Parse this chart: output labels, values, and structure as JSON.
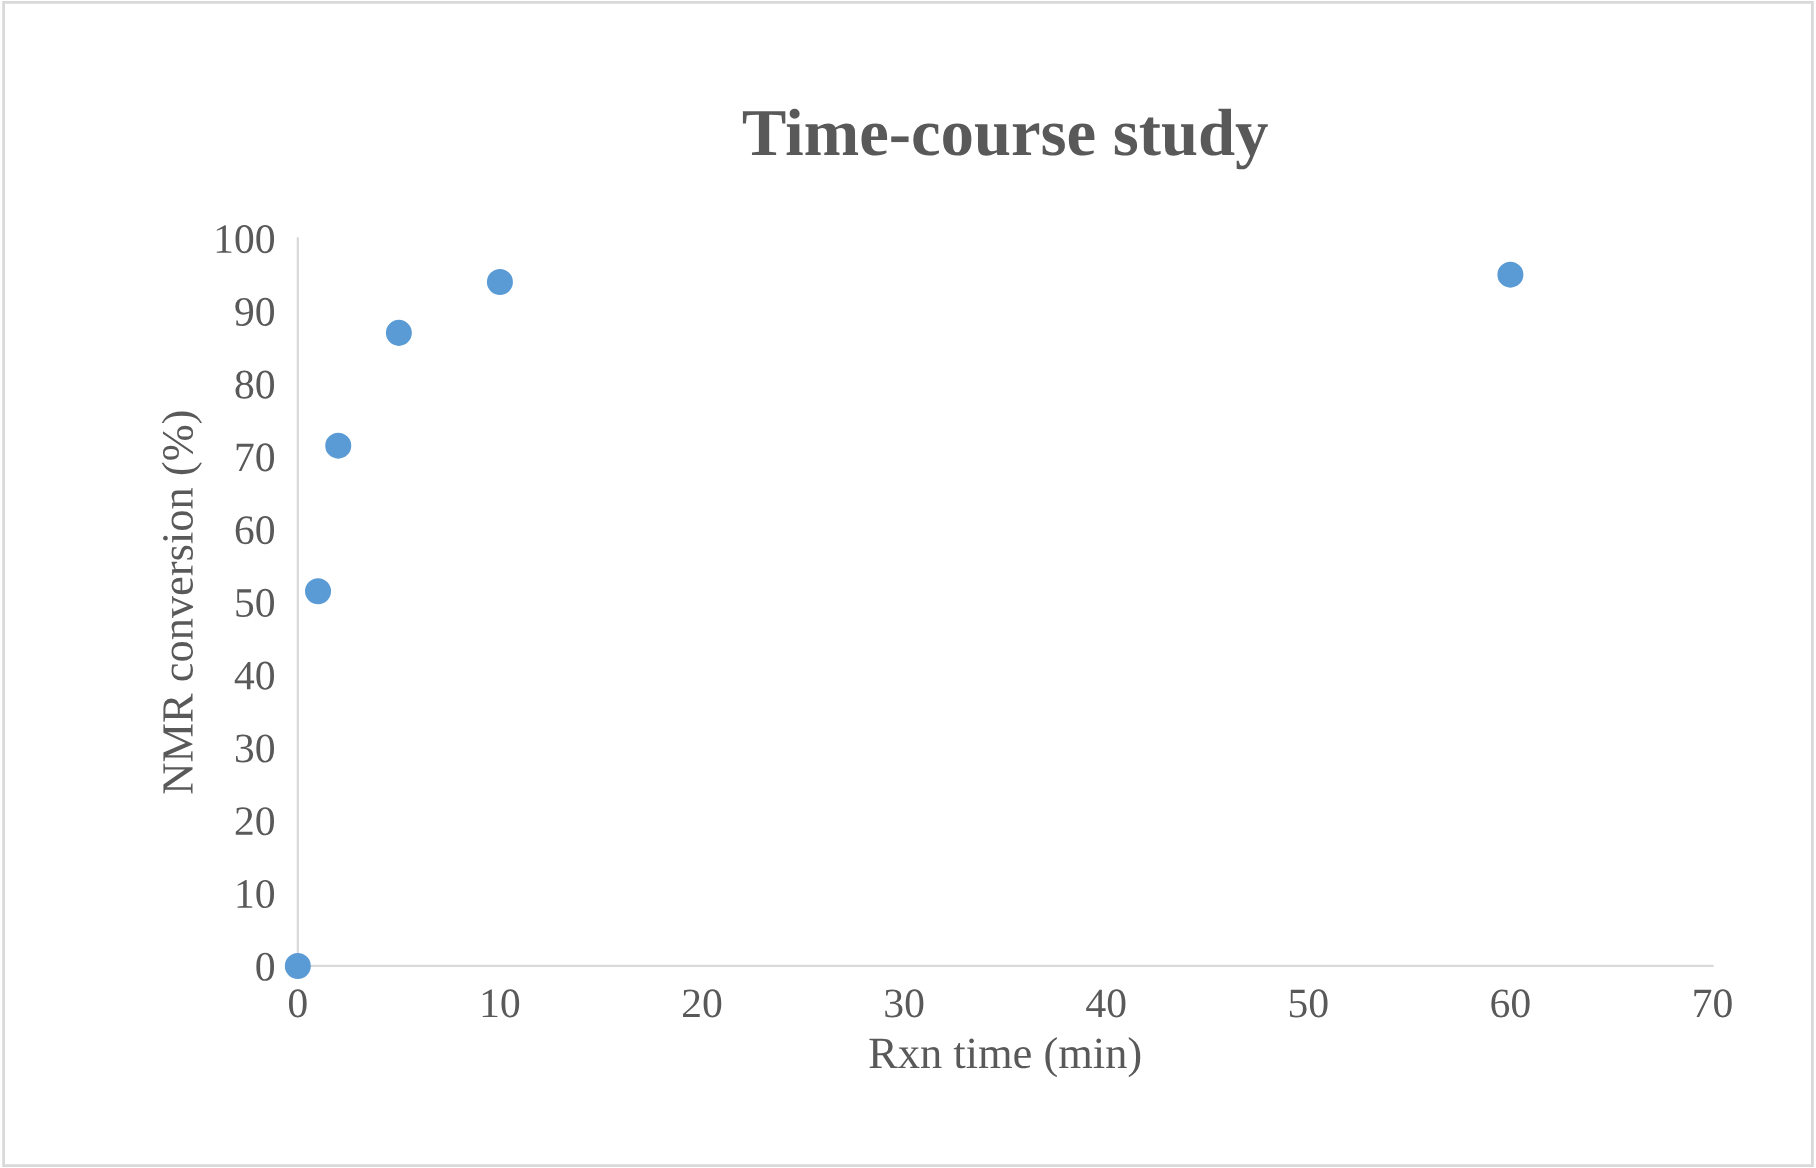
{
  "chart_data": {
    "type": "scatter",
    "title": "Time-course study",
    "xlabel": "Rxn time (min)",
    "ylabel": "NMR conversion (%)",
    "x": [
      0,
      1,
      2,
      5,
      10,
      60
    ],
    "series": [
      {
        "color": "#5b9bd5",
        "values": [
          0,
          51.5,
          71.5,
          87,
          94,
          95
        ]
      }
    ],
    "xlim": [
      0,
      70
    ],
    "xticks": [
      0,
      10,
      20,
      30,
      40,
      50,
      60,
      70
    ],
    "ylim": [
      0,
      100
    ],
    "yticks": [
      0,
      10,
      20,
      30,
      40,
      50,
      60,
      70,
      80,
      90,
      100
    ],
    "grid": false,
    "legend": false,
    "marker": "circle"
  }
}
